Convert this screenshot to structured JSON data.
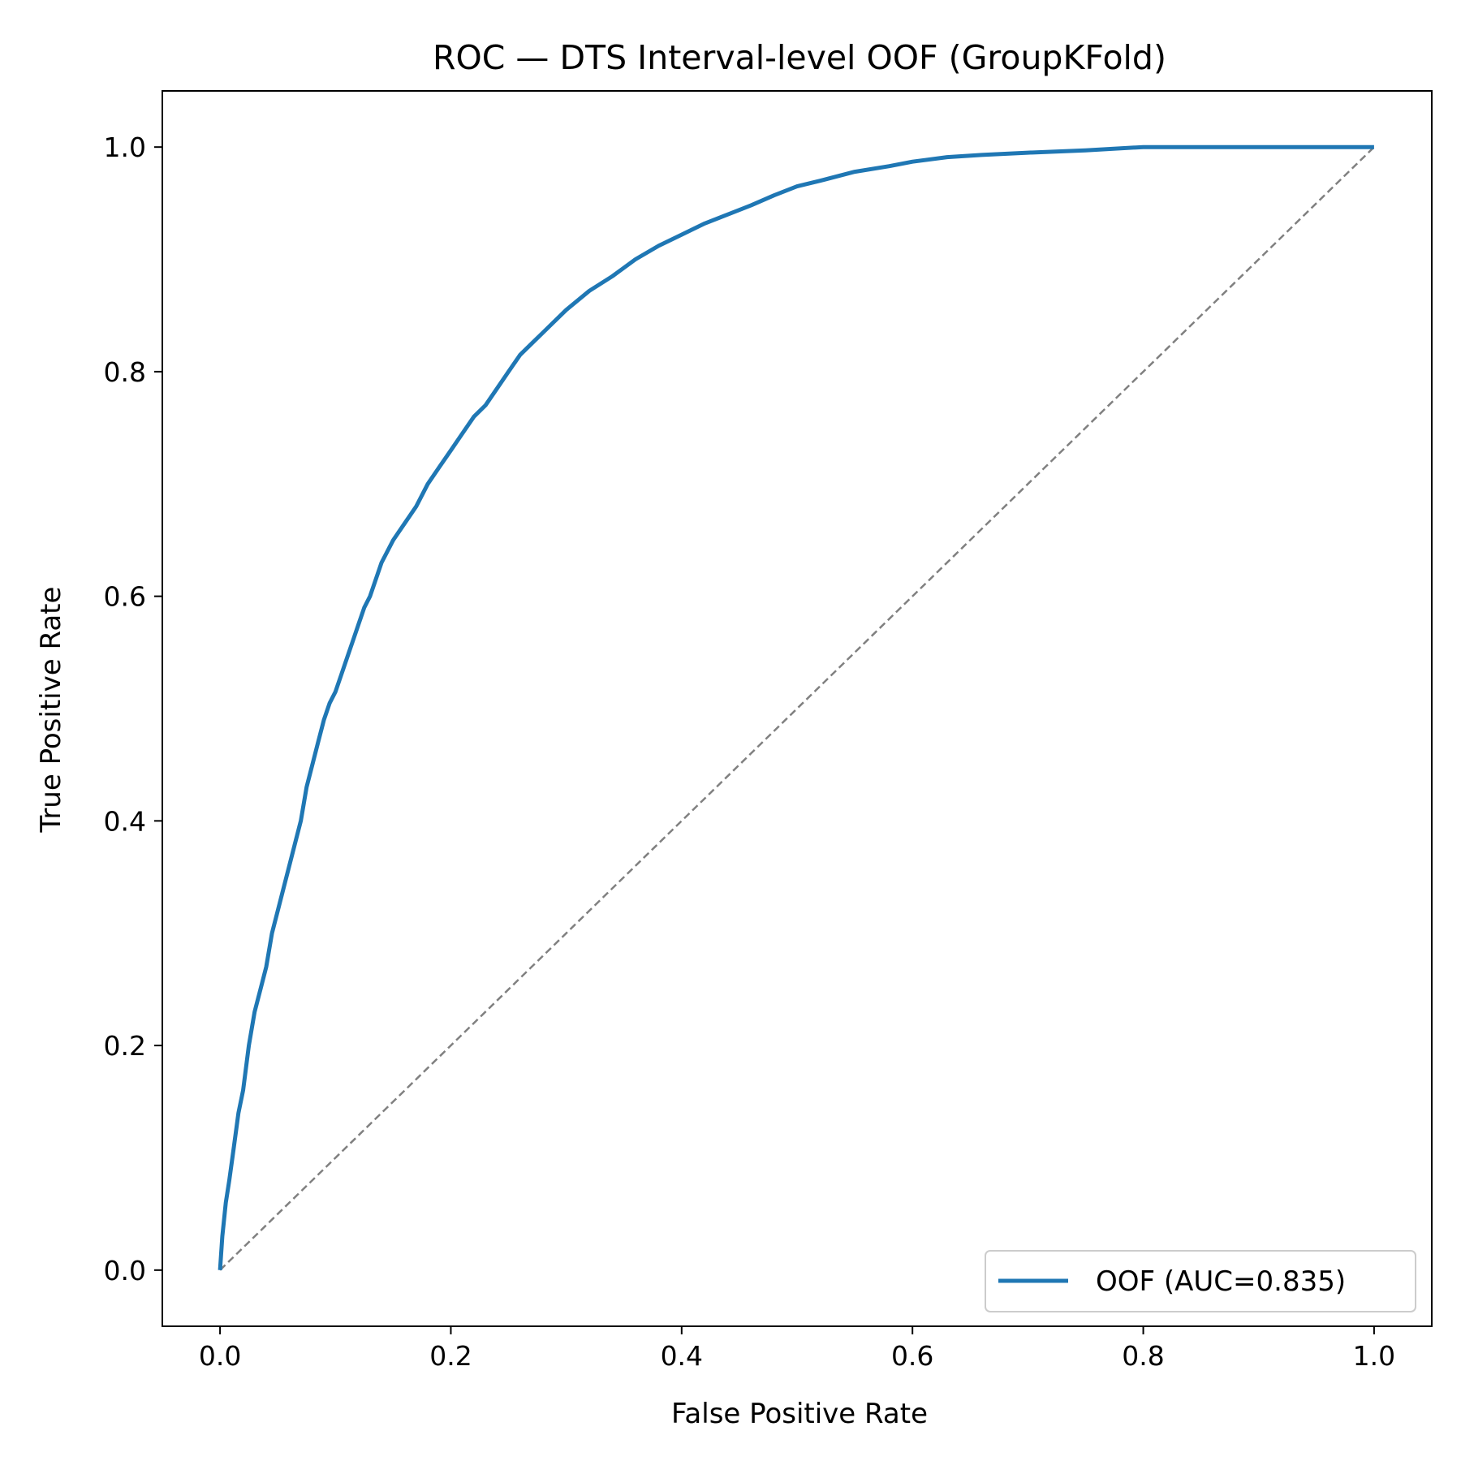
{
  "chart_data": {
    "type": "line",
    "title": "ROC — DTS Interval-level OOF (GroupKFold)",
    "xlabel": "False Positive Rate",
    "ylabel": "True Positive Rate",
    "xlim": [
      -0.05,
      1.05
    ],
    "ylim": [
      -0.05,
      1.05
    ],
    "xticks": [
      0.0,
      0.2,
      0.4,
      0.6,
      0.8,
      1.0
    ],
    "xtick_labels": [
      "0.0",
      "0.2",
      "0.4",
      "0.6",
      "0.8",
      "1.0"
    ],
    "yticks": [
      0.0,
      0.2,
      0.4,
      0.6,
      0.8,
      1.0
    ],
    "ytick_labels": [
      "0.0",
      "0.2",
      "0.4",
      "0.6",
      "0.8",
      "1.0"
    ],
    "grid": false,
    "legend_position": "lower-right",
    "series": [
      {
        "name": "OOF (AUC=0.835)",
        "color": "#1f77b4",
        "style": "solid",
        "x": [
          0.0,
          0.002,
          0.005,
          0.008,
          0.012,
          0.016,
          0.02,
          0.025,
          0.03,
          0.035,
          0.04,
          0.045,
          0.05,
          0.055,
          0.06,
          0.065,
          0.07,
          0.075,
          0.08,
          0.085,
          0.09,
          0.095,
          0.1,
          0.105,
          0.11,
          0.115,
          0.12,
          0.125,
          0.13,
          0.14,
          0.15,
          0.16,
          0.17,
          0.18,
          0.19,
          0.2,
          0.21,
          0.22,
          0.23,
          0.24,
          0.25,
          0.26,
          0.27,
          0.28,
          0.29,
          0.3,
          0.32,
          0.34,
          0.36,
          0.38,
          0.4,
          0.42,
          0.44,
          0.46,
          0.48,
          0.5,
          0.52,
          0.55,
          0.58,
          0.6,
          0.63,
          0.66,
          0.7,
          0.75,
          0.8,
          0.85,
          0.9,
          1.0
        ],
        "y": [
          0.0,
          0.03,
          0.06,
          0.08,
          0.11,
          0.14,
          0.16,
          0.2,
          0.23,
          0.25,
          0.27,
          0.3,
          0.32,
          0.34,
          0.36,
          0.38,
          0.4,
          0.43,
          0.45,
          0.47,
          0.49,
          0.505,
          0.515,
          0.53,
          0.545,
          0.56,
          0.575,
          0.59,
          0.6,
          0.63,
          0.65,
          0.665,
          0.68,
          0.7,
          0.715,
          0.73,
          0.745,
          0.76,
          0.77,
          0.785,
          0.8,
          0.815,
          0.825,
          0.835,
          0.845,
          0.855,
          0.872,
          0.885,
          0.9,
          0.912,
          0.922,
          0.932,
          0.94,
          0.948,
          0.957,
          0.965,
          0.97,
          0.978,
          0.983,
          0.987,
          0.991,
          0.993,
          0.995,
          0.997,
          1.0,
          1.0,
          1.0,
          1.0
        ]
      },
      {
        "name": "",
        "color": "#808080",
        "style": "dashed",
        "x": [
          0.0,
          1.0
        ],
        "y": [
          0.0,
          1.0
        ]
      }
    ]
  }
}
